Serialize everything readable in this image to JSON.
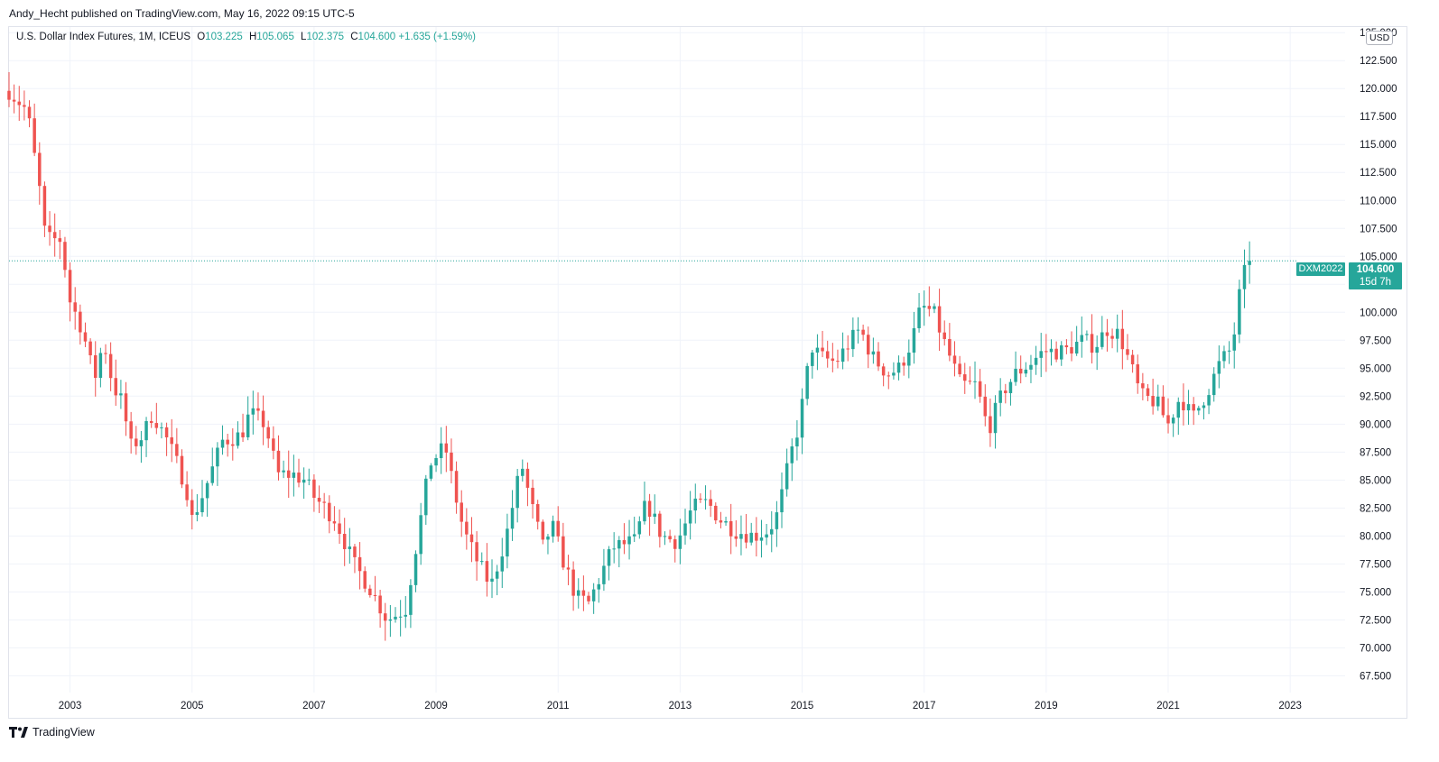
{
  "publisher": "Andy_Hecht published on TradingView.com, May 16, 2022 09:15 UTC-5",
  "brand": "TradingView",
  "legend": {
    "symbol": "U.S. Dollar Index Futures, 1M, ICEUS",
    "open_label": "O",
    "open": "103.225",
    "high_label": "H",
    "high": "105.065",
    "low_label": "L",
    "low": "102.375",
    "close_label": "C",
    "close": "104.600",
    "change": "+1.635 (+1.59%)"
  },
  "currency": "USD",
  "last_price_tag": {
    "symbol": "DXM2022",
    "price": "104.600",
    "countdown": "15d 7h"
  },
  "colors": {
    "up": "#26a69a",
    "down": "#ef5350",
    "grid": "#f0f3fa",
    "text": "#131722"
  },
  "chart_data": {
    "type": "candlestick",
    "interval": "1M",
    "y_axis": {
      "min": 66.0,
      "max": 125.5,
      "side": "right",
      "ticks": [
        "67.500",
        "70.000",
        "72.500",
        "75.000",
        "77.500",
        "80.000",
        "82.500",
        "85.000",
        "87.500",
        "90.000",
        "92.500",
        "95.000",
        "97.500",
        "100.000",
        "102.500",
        "105.000",
        "107.500",
        "110.000",
        "112.500",
        "115.000",
        "117.500",
        "120.000",
        "122.500",
        "125.000"
      ]
    },
    "x_axis": {
      "start": 2002.0,
      "end": 2023.9,
      "ticks": [
        {
          "label": "2003",
          "x": 2003
        },
        {
          "label": "2005",
          "x": 2005
        },
        {
          "label": "2007",
          "x": 2007
        },
        {
          "label": "2009",
          "x": 2009
        },
        {
          "label": "2011",
          "x": 2011
        },
        {
          "label": "2013",
          "x": 2013
        },
        {
          "label": "2015",
          "x": 2015
        },
        {
          "label": "2017",
          "x": 2017
        },
        {
          "label": "2019",
          "x": 2019
        },
        {
          "label": "2021",
          "x": 2021
        },
        {
          "label": "2023",
          "x": 2023
        }
      ]
    },
    "grid": true,
    "last_price": 104.6,
    "anchors": [
      [
        2002.0,
        119.8
      ],
      [
        2002.3,
        118.0
      ],
      [
        2002.5,
        111.0
      ],
      [
        2002.6,
        106.5
      ],
      [
        2002.85,
        106.5
      ],
      [
        2003.0,
        101.0
      ],
      [
        2003.2,
        98.5
      ],
      [
        2003.4,
        94.0
      ],
      [
        2003.55,
        97.5
      ],
      [
        2003.7,
        93.5
      ],
      [
        2003.85,
        92.0
      ],
      [
        2004.0,
        88.0
      ],
      [
        2004.2,
        89.0
      ],
      [
        2004.35,
        91.0
      ],
      [
        2004.6,
        88.5
      ],
      [
        2004.9,
        84.5
      ],
      [
        2005.0,
        81.5
      ],
      [
        2005.2,
        84.0
      ],
      [
        2005.5,
        88.5
      ],
      [
        2005.8,
        89.0
      ],
      [
        2005.95,
        91.0
      ],
      [
        2006.2,
        90.0
      ],
      [
        2006.4,
        85.5
      ],
      [
        2006.65,
        85.5
      ],
      [
        2006.85,
        85.0
      ],
      [
        2007.0,
        83.5
      ],
      [
        2007.35,
        81.5
      ],
      [
        2007.65,
        77.5
      ],
      [
        2007.9,
        75.5
      ],
      [
        2008.2,
        72.5
      ],
      [
        2008.5,
        73.5
      ],
      [
        2008.7,
        80.0
      ],
      [
        2008.9,
        86.5
      ],
      [
        2009.15,
        88.0
      ],
      [
        2009.3,
        84.0
      ],
      [
        2009.45,
        80.5
      ],
      [
        2009.65,
        78.0
      ],
      [
        2009.9,
        75.5
      ],
      [
        2010.15,
        80.0
      ],
      [
        2010.4,
        86.5
      ],
      [
        2010.55,
        83.0
      ],
      [
        2010.75,
        79.0
      ],
      [
        2010.9,
        81.0
      ],
      [
        2011.1,
        77.5
      ],
      [
        2011.3,
        74.5
      ],
      [
        2011.5,
        74.0
      ],
      [
        2011.7,
        76.5
      ],
      [
        2011.9,
        79.0
      ],
      [
        2012.25,
        79.5
      ],
      [
        2012.45,
        83.0
      ],
      [
        2012.7,
        80.0
      ],
      [
        2012.95,
        79.5
      ],
      [
        2013.2,
        82.5
      ],
      [
        2013.45,
        83.0
      ],
      [
        2013.65,
        81.5
      ],
      [
        2013.9,
        80.5
      ],
      [
        2014.2,
        80.0
      ],
      [
        2014.45,
        80.5
      ],
      [
        2014.6,
        82.0
      ],
      [
        2014.8,
        87.0
      ],
      [
        2014.95,
        90.0
      ],
      [
        2015.15,
        97.0
      ],
      [
        2015.3,
        96.0
      ],
      [
        2015.55,
        95.5
      ],
      [
        2015.8,
        97.5
      ],
      [
        2015.95,
        98.5
      ],
      [
        2016.15,
        96.0
      ],
      [
        2016.4,
        94.5
      ],
      [
        2016.6,
        95.0
      ],
      [
        2016.8,
        97.5
      ],
      [
        2016.95,
        100.5
      ],
      [
        2017.15,
        100.0
      ],
      [
        2017.35,
        97.0
      ],
      [
        2017.6,
        93.5
      ],
      [
        2017.85,
        93.5
      ],
      [
        2018.05,
        89.5
      ],
      [
        2018.3,
        93.0
      ],
      [
        2018.5,
        94.5
      ],
      [
        2018.75,
        95.5
      ],
      [
        2018.95,
        96.5
      ],
      [
        2019.3,
        96.5
      ],
      [
        2019.6,
        97.5
      ],
      [
        2019.8,
        97.0
      ],
      [
        2020.0,
        98.5
      ],
      [
        2020.2,
        98.0
      ],
      [
        2020.4,
        95.0
      ],
      [
        2020.55,
        92.5
      ],
      [
        2020.8,
        92.0
      ],
      [
        2021.0,
        90.0
      ],
      [
        2021.2,
        92.5
      ],
      [
        2021.4,
        90.5
      ],
      [
        2021.65,
        93.0
      ],
      [
        2021.85,
        95.5
      ],
      [
        2022.0,
        96.5
      ],
      [
        2022.1,
        98.5
      ],
      [
        2022.2,
        103.0
      ],
      [
        2022.37,
        104.6
      ]
    ]
  }
}
